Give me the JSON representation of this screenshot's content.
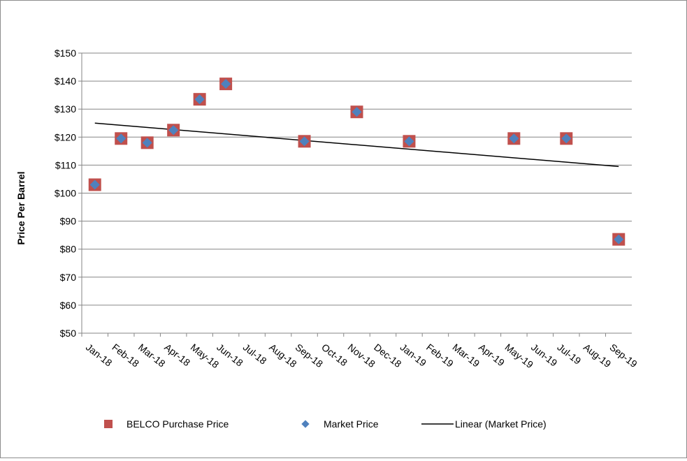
{
  "chart_data": {
    "type": "scatter",
    "title": "",
    "xlabel": "",
    "ylabel": "Price Per Barrel",
    "ylim": [
      50,
      150
    ],
    "ytick_step": 10,
    "ytick_labels": [
      "$50",
      "$60",
      "$70",
      "$80",
      "$90",
      "$100",
      "$110",
      "$120",
      "$130",
      "$140",
      "$150"
    ],
    "categories": [
      "Jan-18",
      "Feb-18",
      "Mar-18",
      "Apr-18",
      "May-18",
      "Jun-18",
      "Jul-18",
      "Aug-18",
      "Sep-18",
      "Oct-18",
      "Nov-18",
      "Dec-18",
      "Jan-19",
      "Feb-19",
      "Mar-19",
      "Apr-19",
      "May-19",
      "Jun-19",
      "Jul-19",
      "Aug-19",
      "Sep-19"
    ],
    "grid": true,
    "legend_position": "bottom",
    "series": [
      {
        "name": "BELCO Purchase Price",
        "marker": "square",
        "color": "#c0504d",
        "points": [
          {
            "x": "Jan-18",
            "y": 103
          },
          {
            "x": "Feb-18",
            "y": 119.5
          },
          {
            "x": "Mar-18",
            "y": 118
          },
          {
            "x": "Apr-18",
            "y": 122.5
          },
          {
            "x": "May-18",
            "y": 133.5
          },
          {
            "x": "Jun-18",
            "y": 139
          },
          {
            "x": "Sep-18",
            "y": 118.5
          },
          {
            "x": "Nov-18",
            "y": 129
          },
          {
            "x": "Jan-19",
            "y": 118.5
          },
          {
            "x": "May-19",
            "y": 119.5
          },
          {
            "x": "Jul-19",
            "y": 119.5
          },
          {
            "x": "Sep-19",
            "y": 83.5
          }
        ]
      },
      {
        "name": "Market Price",
        "marker": "diamond",
        "color": "#4f81bd",
        "points": [
          {
            "x": "Jan-18",
            "y": 103
          },
          {
            "x": "Feb-18",
            "y": 119.5
          },
          {
            "x": "Mar-18",
            "y": 118
          },
          {
            "x": "Apr-18",
            "y": 122.5
          },
          {
            "x": "May-18",
            "y": 133.5
          },
          {
            "x": "Jun-18",
            "y": 139
          },
          {
            "x": "Sep-18",
            "y": 118.5
          },
          {
            "x": "Nov-18",
            "y": 129
          },
          {
            "x": "Jan-19",
            "y": 118.5
          },
          {
            "x": "May-19",
            "y": 119.5
          },
          {
            "x": "Jul-19",
            "y": 119.5
          },
          {
            "x": "Sep-19",
            "y": 83.5
          }
        ]
      },
      {
        "name": "Linear (Market Price)",
        "marker": "line",
        "color": "#000000",
        "start": {
          "x": "Jan-18",
          "y": 125
        },
        "end": {
          "x": "Sep-19",
          "y": 109.5
        }
      }
    ]
  }
}
